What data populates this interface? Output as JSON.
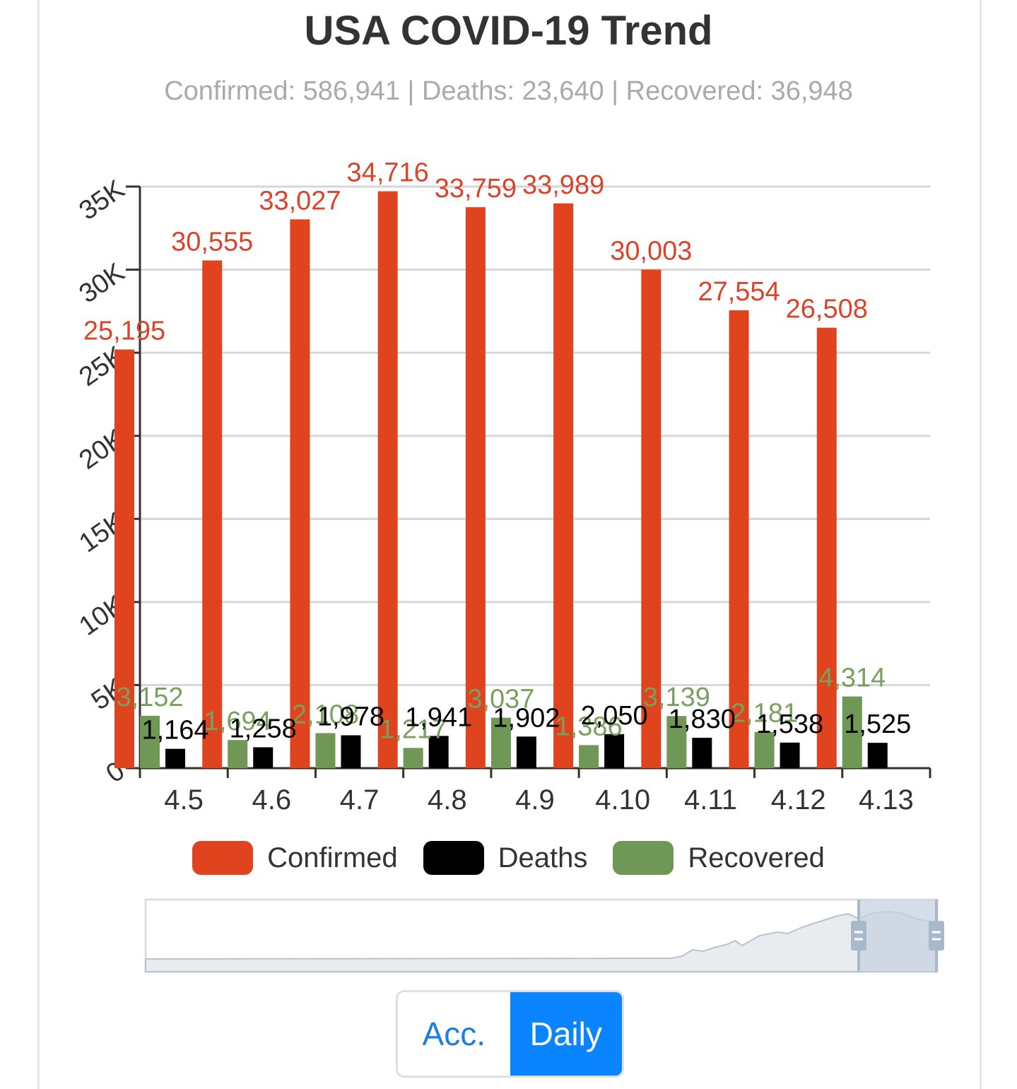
{
  "title": "USA COVID-19 Trend",
  "subtitle": "Confirmed: 586,941 | Deaths: 23,640 | Recovered: 36,948",
  "legend": [
    {
      "name": "Confirmed",
      "color": "#e0441f"
    },
    {
      "name": "Deaths",
      "color": "#000000"
    },
    {
      "name": "Recovered",
      "color": "#6f9756"
    }
  ],
  "toggle": {
    "acc_label": "Acc.",
    "daily_label": "Daily",
    "active": "Daily"
  },
  "chart_data": {
    "type": "bar",
    "categories": [
      "4.5",
      "4.6",
      "4.7",
      "4.8",
      "4.9",
      "4.10",
      "4.11",
      "4.12",
      "4.13"
    ],
    "series": [
      {
        "name": "Confirmed",
        "color": "#e0441f",
        "label_color": "#d9442a",
        "values": [
          25195,
          30555,
          33027,
          34716,
          33759,
          33989,
          30003,
          27554,
          26508
        ],
        "labels": [
          "25,195",
          "30,555",
          "33,027",
          "34,716",
          "33,759",
          "33,989",
          "30,003",
          "27,554",
          "26,508"
        ]
      },
      {
        "name": "Recovered",
        "color": "#6f9756",
        "label_color": "#79a05e",
        "values": [
          3152,
          1694,
          2108,
          1217,
          3037,
          1386,
          3139,
          2181,
          4314
        ],
        "labels": [
          "3,152",
          "1,694",
          "2,108",
          "1,217",
          "3,037",
          "1,386",
          "3,139",
          "2,181",
          "4,314"
        ]
      },
      {
        "name": "Deaths",
        "color": "#000000",
        "label_color": "#000000",
        "values": [
          1164,
          1258,
          1978,
          1941,
          1902,
          2050,
          1830,
          1538,
          1525
        ],
        "labels": [
          "1,164",
          "1,258",
          "1,978",
          "1,941",
          "1,902",
          "2,050",
          "1,830",
          "1,538",
          "1,525"
        ]
      }
    ],
    "y_ticks": [
      0,
      5000,
      10000,
      15000,
      20000,
      25000,
      30000,
      35000
    ],
    "y_tick_labels": [
      "0",
      "5K",
      "10K",
      "15K",
      "20K",
      "25K",
      "30K",
      "35K"
    ],
    "ylim": [
      0,
      35000
    ],
    "grid": true,
    "legend_position": "bottom",
    "zoom_window": [
      0.9,
      1.0
    ]
  }
}
